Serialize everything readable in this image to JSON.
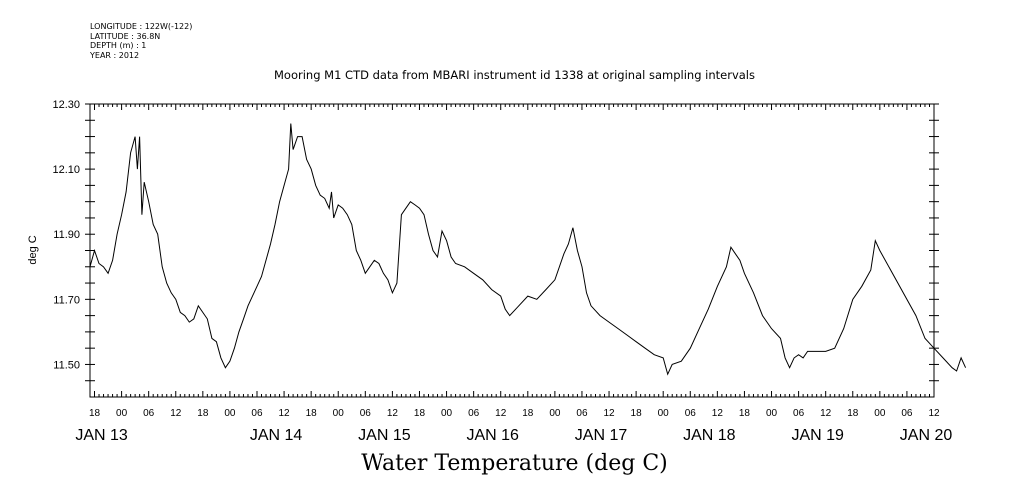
{
  "header": {
    "lines": [
      "LONGITUDE : 122W(-122)",
      "LATITUDE : 36.8N",
      "DEPTH (m) : 1",
      "YEAR : 2012"
    ]
  },
  "chart_data": {
    "type": "line",
    "title": "Mooring M1 CTD data from MBARI instrument id 1338 at original sampling intervals",
    "bottom_title": "Water Temperature (deg C)",
    "ylabel": "deg C",
    "xlabel": "",
    "ylim": [
      11.4,
      12.3
    ],
    "xlim": [
      "2012-01-12T17:00",
      "2012-01-20T12:00"
    ],
    "y_ticks": [
      "11.50",
      "11.70",
      "11.90",
      "12.10",
      "12.30"
    ],
    "x_hour_ticks": [
      "18",
      "00",
      "06",
      "12",
      "18",
      "00",
      "06",
      "12",
      "18",
      "00",
      "06",
      "12",
      "18",
      "00",
      "06",
      "12",
      "18",
      "00",
      "06",
      "12",
      "18",
      "00",
      "06",
      "12",
      "18",
      "00",
      "06",
      "12",
      "18",
      "00",
      "06",
      "12"
    ],
    "x_date_labels": [
      "JAN 13",
      "JAN 14",
      "JAN 15",
      "JAN 16",
      "JAN 17",
      "JAN 18",
      "JAN 19",
      "JAN 20"
    ],
    "grid": false,
    "series": [
      {
        "color": "#000000",
        "points": [
          [
            "2012-01-12T17:00",
            11.8
          ],
          [
            "2012-01-12T18:00",
            11.85
          ],
          [
            "2012-01-12T19:00",
            11.81
          ],
          [
            "2012-01-12T20:00",
            11.8
          ],
          [
            "2012-01-12T21:00",
            11.78
          ],
          [
            "2012-01-12T22:00",
            11.82
          ],
          [
            "2012-01-12T23:00",
            11.9
          ],
          [
            "2012-01-13T00:00",
            11.96
          ],
          [
            "2012-01-13T01:00",
            12.03
          ],
          [
            "2012-01-13T02:00",
            12.15
          ],
          [
            "2012-01-13T03:00",
            12.2
          ],
          [
            "2012-01-13T03:30",
            12.1
          ],
          [
            "2012-01-13T04:00",
            12.2
          ],
          [
            "2012-01-13T04:30",
            11.96
          ],
          [
            "2012-01-13T05:00",
            12.06
          ],
          [
            "2012-01-13T06:00",
            12.0
          ],
          [
            "2012-01-13T07:00",
            11.93
          ],
          [
            "2012-01-13T08:00",
            11.9
          ],
          [
            "2012-01-13T09:00",
            11.8
          ],
          [
            "2012-01-13T10:00",
            11.75
          ],
          [
            "2012-01-13T11:00",
            11.72
          ],
          [
            "2012-01-13T12:00",
            11.7
          ],
          [
            "2012-01-13T13:00",
            11.66
          ],
          [
            "2012-01-13T14:00",
            11.65
          ],
          [
            "2012-01-13T15:00",
            11.63
          ],
          [
            "2012-01-13T16:00",
            11.64
          ],
          [
            "2012-01-13T17:00",
            11.68
          ],
          [
            "2012-01-13T18:00",
            11.66
          ],
          [
            "2012-01-13T19:00",
            11.64
          ],
          [
            "2012-01-13T20:00",
            11.58
          ],
          [
            "2012-01-13T21:00",
            11.57
          ],
          [
            "2012-01-13T22:00",
            11.52
          ],
          [
            "2012-01-13T23:00",
            11.49
          ],
          [
            "2012-01-14T00:00",
            11.51
          ],
          [
            "2012-01-14T01:00",
            11.55
          ],
          [
            "2012-01-14T02:00",
            11.6
          ],
          [
            "2012-01-14T03:00",
            11.64
          ],
          [
            "2012-01-14T04:00",
            11.68
          ],
          [
            "2012-01-14T05:00",
            11.71
          ],
          [
            "2012-01-14T06:00",
            11.74
          ],
          [
            "2012-01-14T07:00",
            11.77
          ],
          [
            "2012-01-14T08:00",
            11.82
          ],
          [
            "2012-01-14T09:00",
            11.87
          ],
          [
            "2012-01-14T10:00",
            11.93
          ],
          [
            "2012-01-14T11:00",
            12.0
          ],
          [
            "2012-01-14T12:00",
            12.05
          ],
          [
            "2012-01-14T13:00",
            12.1
          ],
          [
            "2012-01-14T13:30",
            12.24
          ],
          [
            "2012-01-14T14:00",
            12.16
          ],
          [
            "2012-01-14T15:00",
            12.2
          ],
          [
            "2012-01-14T16:00",
            12.2
          ],
          [
            "2012-01-14T17:00",
            12.13
          ],
          [
            "2012-01-14T18:00",
            12.1
          ],
          [
            "2012-01-14T19:00",
            12.05
          ],
          [
            "2012-01-14T20:00",
            12.02
          ],
          [
            "2012-01-14T21:00",
            12.01
          ],
          [
            "2012-01-14T22:00",
            11.98
          ],
          [
            "2012-01-14T22:30",
            12.03
          ],
          [
            "2012-01-14T23:00",
            11.95
          ],
          [
            "2012-01-15T00:00",
            11.99
          ],
          [
            "2012-01-15T01:00",
            11.98
          ],
          [
            "2012-01-15T02:00",
            11.96
          ],
          [
            "2012-01-15T03:00",
            11.93
          ],
          [
            "2012-01-15T04:00",
            11.85
          ],
          [
            "2012-01-15T05:00",
            11.82
          ],
          [
            "2012-01-15T06:00",
            11.78
          ],
          [
            "2012-01-15T07:00",
            11.8
          ],
          [
            "2012-01-15T08:00",
            11.82
          ],
          [
            "2012-01-15T09:00",
            11.81
          ],
          [
            "2012-01-15T10:00",
            11.78
          ],
          [
            "2012-01-15T11:00",
            11.76
          ],
          [
            "2012-01-15T12:00",
            11.72
          ],
          [
            "2012-01-15T13:00",
            11.75
          ],
          [
            "2012-01-15T14:00",
            11.96
          ],
          [
            "2012-01-15T15:00",
            11.98
          ],
          [
            "2012-01-15T16:00",
            12.0
          ],
          [
            "2012-01-15T17:00",
            11.99
          ],
          [
            "2012-01-15T18:00",
            11.98
          ],
          [
            "2012-01-15T19:00",
            11.96
          ],
          [
            "2012-01-15T20:00",
            11.9
          ],
          [
            "2012-01-15T21:00",
            11.85
          ],
          [
            "2012-01-15T22:00",
            11.83
          ],
          [
            "2012-01-15T23:00",
            11.91
          ],
          [
            "2012-01-16T00:00",
            11.88
          ],
          [
            "2012-01-16T01:00",
            11.83
          ],
          [
            "2012-01-16T02:00",
            11.81
          ],
          [
            "2012-01-16T04:00",
            11.8
          ],
          [
            "2012-01-16T06:00",
            11.78
          ],
          [
            "2012-01-16T08:00",
            11.76
          ],
          [
            "2012-01-16T10:00",
            11.73
          ],
          [
            "2012-01-16T12:00",
            11.71
          ],
          [
            "2012-01-16T13:00",
            11.67
          ],
          [
            "2012-01-16T14:00",
            11.65
          ],
          [
            "2012-01-16T16:00",
            11.68
          ],
          [
            "2012-01-16T18:00",
            11.71
          ],
          [
            "2012-01-16T20:00",
            11.7
          ],
          [
            "2012-01-16T22:00",
            11.73
          ],
          [
            "2012-01-17T00:00",
            11.76
          ],
          [
            "2012-01-17T02:00",
            11.84
          ],
          [
            "2012-01-17T03:00",
            11.87
          ],
          [
            "2012-01-17T04:00",
            11.92
          ],
          [
            "2012-01-17T05:00",
            11.85
          ],
          [
            "2012-01-17T06:00",
            11.8
          ],
          [
            "2012-01-17T07:00",
            11.72
          ],
          [
            "2012-01-17T08:00",
            11.68
          ],
          [
            "2012-01-17T10:00",
            11.65
          ],
          [
            "2012-01-17T12:00",
            11.63
          ],
          [
            "2012-01-17T14:00",
            11.61
          ],
          [
            "2012-01-17T16:00",
            11.59
          ],
          [
            "2012-01-17T18:00",
            11.57
          ],
          [
            "2012-01-17T20:00",
            11.55
          ],
          [
            "2012-01-17T22:00",
            11.53
          ],
          [
            "2012-01-18T00:00",
            11.52
          ],
          [
            "2012-01-18T01:00",
            11.47
          ],
          [
            "2012-01-18T02:00",
            11.5
          ],
          [
            "2012-01-18T04:00",
            11.51
          ],
          [
            "2012-01-18T06:00",
            11.55
          ],
          [
            "2012-01-18T08:00",
            11.61
          ],
          [
            "2012-01-18T10:00",
            11.67
          ],
          [
            "2012-01-18T12:00",
            11.74
          ],
          [
            "2012-01-18T14:00",
            11.8
          ],
          [
            "2012-01-18T15:00",
            11.86
          ],
          [
            "2012-01-18T16:00",
            11.84
          ],
          [
            "2012-01-18T17:00",
            11.82
          ],
          [
            "2012-01-18T18:00",
            11.78
          ],
          [
            "2012-01-18T20:00",
            11.72
          ],
          [
            "2012-01-18T22:00",
            11.65
          ],
          [
            "2012-01-19T00:00",
            11.61
          ],
          [
            "2012-01-19T02:00",
            11.58
          ],
          [
            "2012-01-19T03:00",
            11.52
          ],
          [
            "2012-01-19T04:00",
            11.49
          ],
          [
            "2012-01-19T05:00",
            11.52
          ],
          [
            "2012-01-19T06:00",
            11.53
          ],
          [
            "2012-01-19T07:00",
            11.52
          ],
          [
            "2012-01-19T08:00",
            11.54
          ],
          [
            "2012-01-19T12:00",
            11.54
          ],
          [
            "2012-01-19T14:00",
            11.55
          ],
          [
            "2012-01-19T16:00",
            11.61
          ],
          [
            "2012-01-19T18:00",
            11.7
          ],
          [
            "2012-01-19T20:00",
            11.74
          ],
          [
            "2012-01-19T22:00",
            11.79
          ],
          [
            "2012-01-19T23:00",
            11.88
          ],
          [
            "2012-01-20T00:00",
            11.85
          ],
          [
            "2012-01-20T08:00",
            11.65
          ],
          [
            "2012-01-20T10:00",
            11.58
          ],
          [
            "2012-01-20T12:00",
            11.55
          ],
          [
            "2012-01-20T14:00",
            11.52
          ],
          [
            "2012-01-20T16:00",
            11.49
          ],
          [
            "2012-01-20T17:00",
            11.48
          ],
          [
            "2012-01-20T18:00",
            11.52
          ],
          [
            "2012-01-20T19:00",
            11.49
          ]
        ]
      }
    ]
  }
}
